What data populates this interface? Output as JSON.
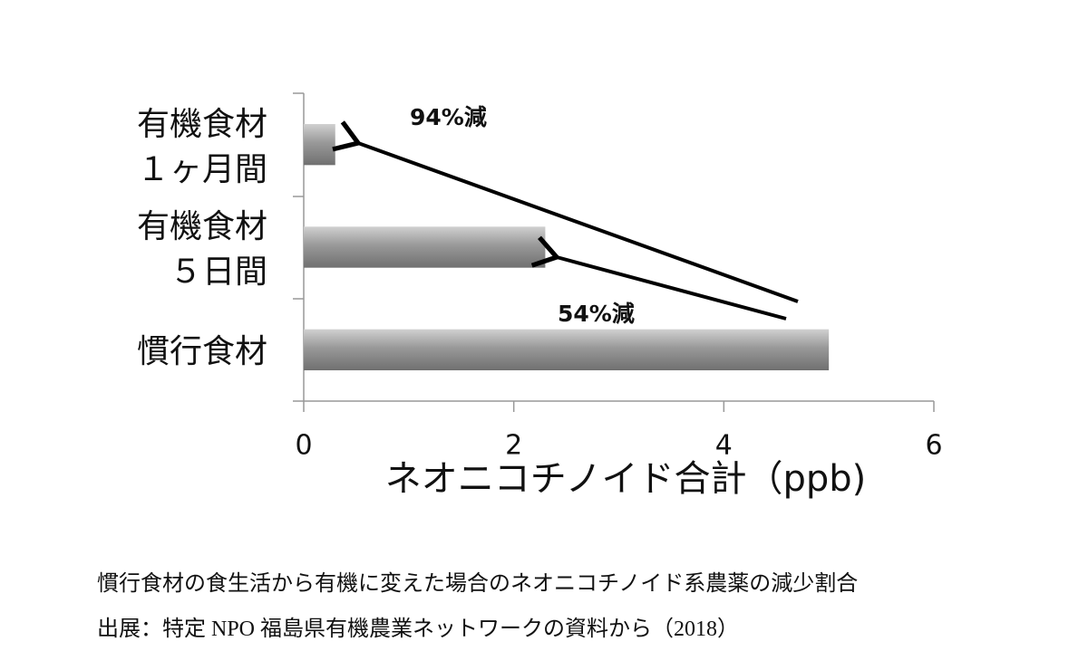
{
  "chart_data": {
    "type": "hbar",
    "categories": [
      "有機食材\n１ヶ月間",
      "有機食材\n５日間",
      "慣行食材"
    ],
    "values": [
      0.3,
      2.3,
      5
    ],
    "color": "#999999",
    "xlabel": "ネオニコチノイド合計（ppb)",
    "xlim": [
      0,
      6
    ],
    "xticks": [
      0,
      2,
      4,
      6
    ],
    "annotations": [
      "94%減",
      "54%減"
    ]
  },
  "caption": [
    "慣行食材の食生活から有機に変えた場合のネオニコチノイド系農薬の減少割合",
    "出展：特定 NPO 福島県有機農業ネットワークの資料から（2018）"
  ]
}
